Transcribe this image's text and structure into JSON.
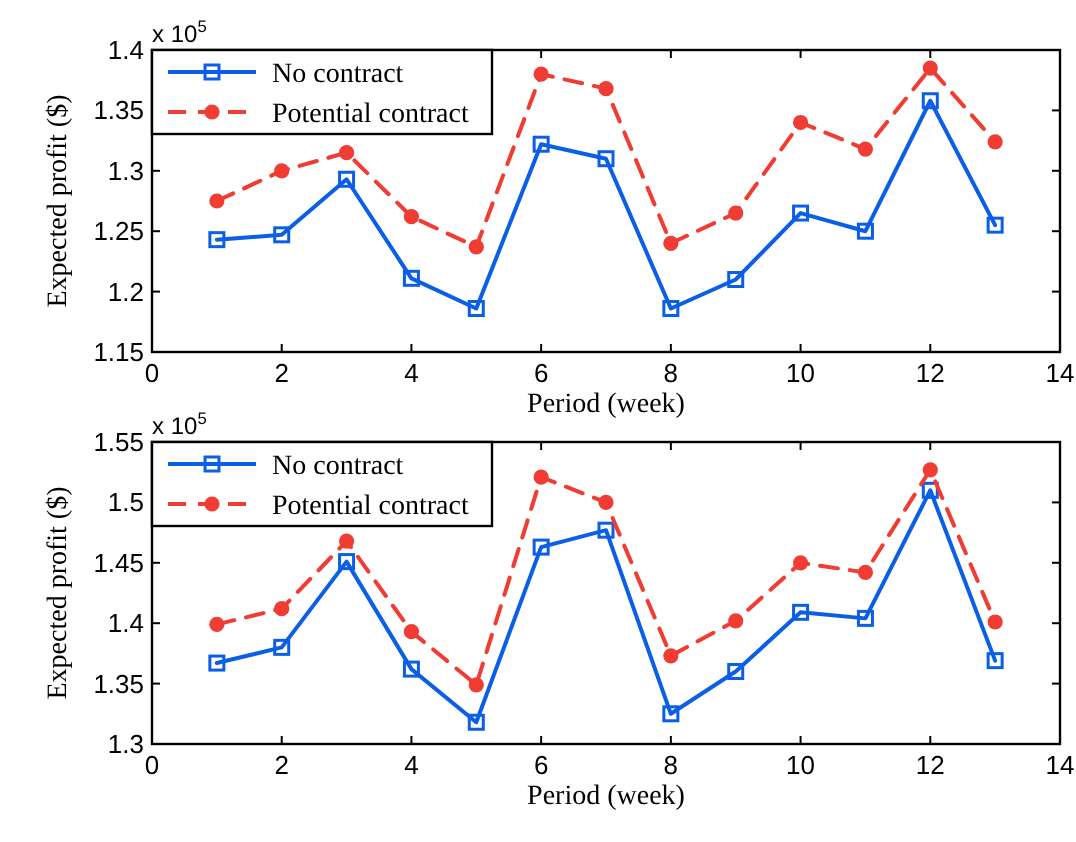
{
  "chart_data": [
    {
      "type": "line",
      "xlabel": "Period (week)",
      "ylabel": "Expected profit ($)",
      "x": [
        1,
        2,
        3,
        4,
        5,
        6,
        7,
        8,
        9,
        10,
        11,
        12,
        13
      ],
      "xlim": [
        0,
        14
      ],
      "xticks": [
        0,
        2,
        4,
        6,
        8,
        10,
        12,
        14
      ],
      "ylim": [
        1.15,
        1.4
      ],
      "yticks": [
        1.15,
        1.2,
        1.25,
        1.3,
        1.35,
        1.4
      ],
      "legend": "top left",
      "annotations": [
        "x 10$^{5}$"
      ],
      "series": [
        {
          "name": "No contract",
          "color": "#0a5fe6",
          "marker": "square",
          "line_style": "solid",
          "values": [
            1.243,
            1.247,
            1.293,
            1.211,
            1.186,
            1.322,
            1.31,
            1.186,
            1.21,
            1.265,
            1.25,
            1.358,
            1.255
          ]
        },
        {
          "name": "Potential contract",
          "color": "#f03c32",
          "marker": "circle",
          "line_style": "dashed",
          "values": [
            1.275,
            1.3,
            1.315,
            1.262,
            1.237,
            1.38,
            1.368,
            1.24,
            1.265,
            1.34,
            1.318,
            1.385,
            1.324
          ]
        }
      ]
    },
    {
      "type": "line",
      "xlabel": "Period (week)",
      "ylabel": "Expected profit ($)",
      "x": [
        1,
        2,
        3,
        4,
        5,
        6,
        7,
        8,
        9,
        10,
        11,
        12,
        13
      ],
      "xlim": [
        0,
        14
      ],
      "xticks": [
        0,
        2,
        4,
        6,
        8,
        10,
        12,
        14
      ],
      "ylim": [
        1.3,
        1.55
      ],
      "yticks": [
        1.3,
        1.35,
        1.4,
        1.45,
        1.5,
        1.55
      ],
      "legend": "top left",
      "annotations": [
        "x 10$^{5}$"
      ],
      "series": [
        {
          "name": "No contract",
          "color": "#0a5fe6",
          "marker": "square",
          "line_style": "solid",
          "values": [
            1.367,
            1.38,
            1.451,
            1.362,
            1.318,
            1.463,
            1.477,
            1.325,
            1.36,
            1.409,
            1.404,
            1.51,
            1.369
          ]
        },
        {
          "name": "Potential contract",
          "color": "#f03c32",
          "marker": "circle",
          "line_style": "dashed",
          "values": [
            1.399,
            1.412,
            1.468,
            1.393,
            1.349,
            1.521,
            1.5,
            1.373,
            1.402,
            1.45,
            1.442,
            1.527,
            1.401
          ]
        }
      ]
    }
  ]
}
